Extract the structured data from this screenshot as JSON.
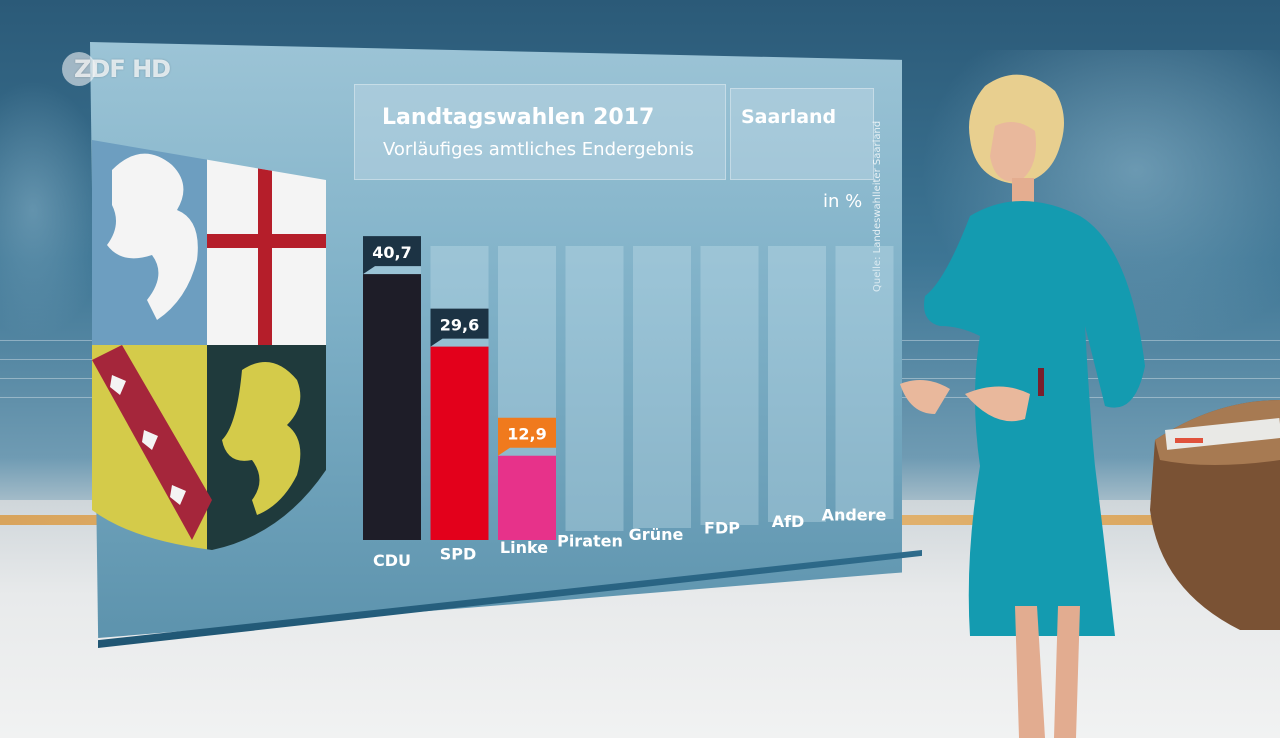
{
  "broadcaster": {
    "logo_text": "ZDF HD"
  },
  "header": {
    "title": "Landtagswahlen 2017",
    "subtitle": "Vorläufiges amtliches Endergebnis",
    "region": "Saarland",
    "unit": "in %",
    "source": "Quelle: Landeswahlleiter Saarland"
  },
  "chart_data": {
    "type": "bar",
    "title": "Landtagswahlen 2017",
    "subtitle": "Vorläufiges amtliches Endergebnis",
    "ylabel": "in %",
    "categories": [
      "CDU",
      "SPD",
      "Linke",
      "Piraten",
      "Grüne",
      "FDP",
      "AfD",
      "Andere"
    ],
    "values": [
      40.7,
      29.6,
      12.9,
      null,
      null,
      null,
      null,
      null
    ],
    "value_labels": [
      "40,7",
      "29,6",
      "12,9",
      "",
      "",
      "",
      "",
      ""
    ],
    "colors": [
      "#1e1d28",
      "#e3001b",
      "#e7328a",
      null,
      null,
      null,
      null,
      null
    ],
    "label_box_colors": [
      "#1c3344",
      "#1c3344",
      "#f07a1d",
      null,
      null,
      null,
      null,
      null
    ],
    "ylim": [
      0,
      45
    ],
    "grid": false,
    "legend": "none"
  }
}
